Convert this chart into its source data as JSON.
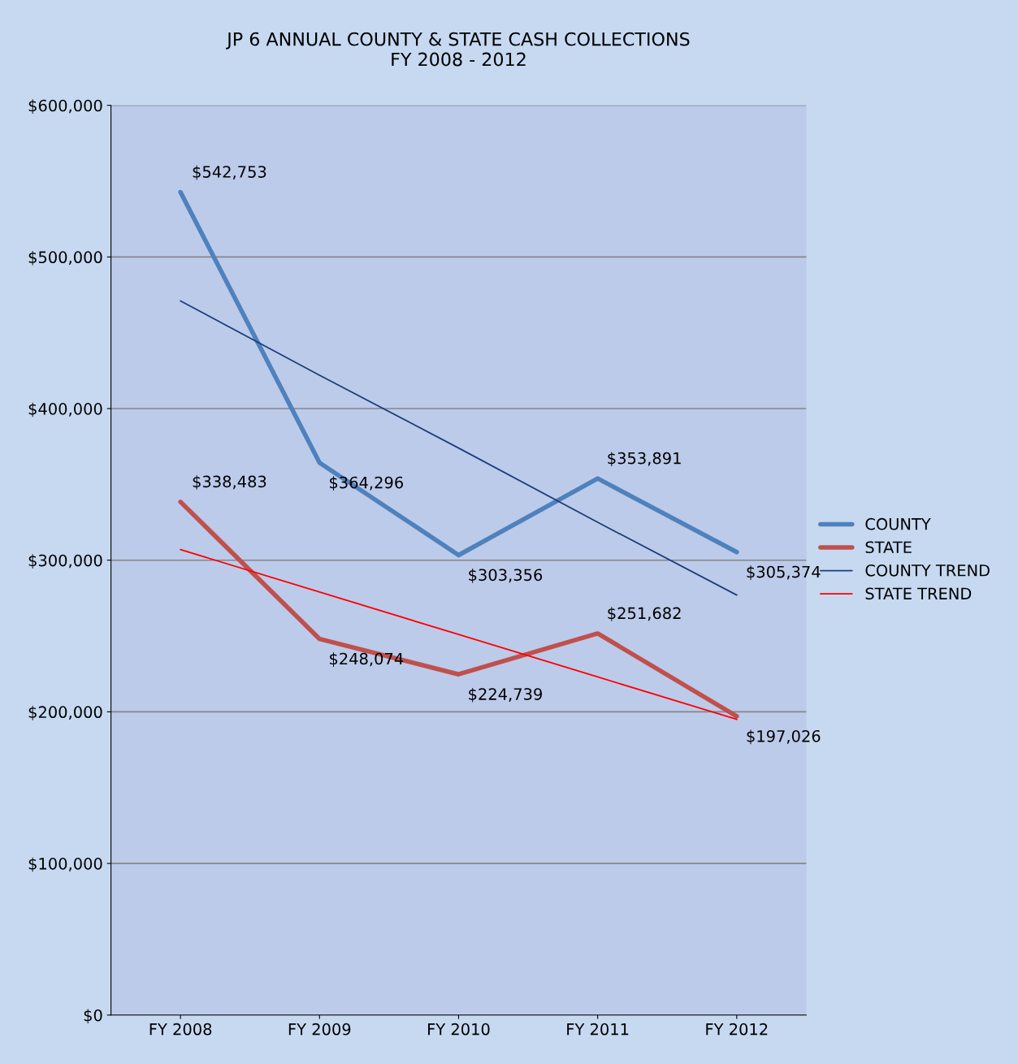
{
  "chart_data": {
    "type": "line",
    "title": "JP 6 ANNUAL COUNTY & STATE CASH COLLECTIONS\nFY 2008 - 2012",
    "categories": [
      "FY 2008",
      "FY 2009",
      "FY 2010",
      "FY 2011",
      "FY 2012"
    ],
    "series": [
      {
        "name": "COUNTY",
        "color": "#4f81bd",
        "values": [
          542753,
          364296,
          303356,
          353891,
          305374
        ],
        "value_labels": [
          "$542,753",
          "$364,296",
          "$303,356",
          "$353,891",
          "$305,374"
        ]
      },
      {
        "name": "STATE",
        "color": "#c0504d",
        "values": [
          338483,
          248074,
          224739,
          251682,
          197026
        ],
        "value_labels": [
          "$338,483",
          "$248,074",
          "$224,739",
          "$251,682",
          "$197,026"
        ]
      },
      {
        "name": "COUNTY TREND",
        "color": "#1f3d7a",
        "values": [
          471000,
          422000,
          374000,
          325000,
          277000
        ]
      },
      {
        "name": "STATE TREND",
        "color": "#ff0000",
        "values": [
          307000,
          279000,
          251000,
          223000,
          195000
        ]
      }
    ],
    "ylim": [
      0,
      600000
    ],
    "yticks": [
      {
        "value": 0,
        "label": "$0"
      },
      {
        "value": 100000,
        "label": "$100,000"
      },
      {
        "value": 200000,
        "label": "$200,000"
      },
      {
        "value": 300000,
        "label": "$300,000"
      },
      {
        "value": 400000,
        "label": "$400,000"
      },
      {
        "value": 500000,
        "label": "$500,000"
      },
      {
        "value": 600000,
        "label": "$600,000"
      }
    ],
    "grid": "y",
    "legend": "right",
    "marker": "none",
    "line_style": "solid"
  }
}
